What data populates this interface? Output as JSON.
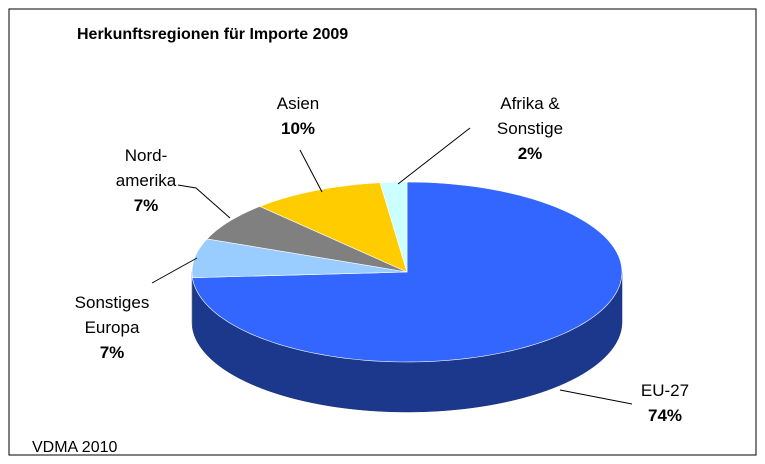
{
  "chart_data": {
    "type": "pie",
    "title": "Herkunftsregionen für Importe 2009",
    "source": "VDMA 2010",
    "categories": [
      "EU-27",
      "Sonstiges\nEuropa",
      "Nord-\namerika",
      "Asien",
      "Afrika &\nSonstige"
    ],
    "values": [
      74,
      7,
      7,
      10,
      2
    ],
    "value_labels": [
      "74%",
      "7%",
      "7%",
      "10%",
      "2%"
    ],
    "colors": [
      "#3366ff",
      "#99ccff",
      "#808080",
      "#ffcc00",
      "#ccffff"
    ]
  }
}
